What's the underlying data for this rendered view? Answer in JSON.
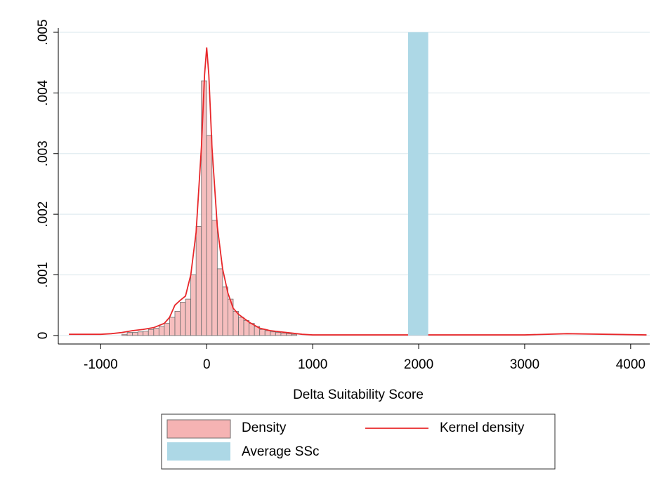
{
  "chart_data": {
    "type": "histogram",
    "x_label": "Delta Suitability Score",
    "xlim": [
      -1400,
      4180
    ],
    "xticks": [
      -1000,
      0,
      1000,
      2000,
      3000,
      4000
    ],
    "ylim": [
      -0.00014,
      0.005
    ],
    "yticks": [
      0,
      {
        "value": 0.001,
        "label": ".001"
      },
      {
        "value": 0.002,
        "label": ".002"
      },
      {
        "value": 0.003,
        "label": ".003"
      },
      {
        "value": 0.004,
        "label": ".004"
      },
      {
        "value": 0.005,
        "label": ".005"
      }
    ],
    "grid": true,
    "bins": [
      -800,
      -750,
      -700,
      -650,
      -600,
      -550,
      -500,
      -450,
      -400,
      -350,
      -300,
      -250,
      -200,
      -150,
      -100,
      -50,
      0,
      50,
      100,
      150,
      200,
      250,
      300,
      350,
      400,
      450,
      500,
      550,
      600,
      650,
      700,
      750,
      800,
      850
    ],
    "series": [
      {
        "name": "Density",
        "type": "histogram",
        "color": "#f5b3b3",
        "values": [
          2e-05,
          5e-05,
          5e-05,
          6e-05,
          7e-05,
          0.0001,
          0.00012,
          0.00015,
          0.0002,
          0.0003,
          0.0004,
          0.00055,
          0.0006,
          0.001,
          0.0018,
          0.0042,
          0.0033,
          0.0019,
          0.0011,
          0.0008,
          0.0006,
          0.0004,
          0.0003,
          0.00025,
          0.0002,
          0.00015,
          0.0001,
          8e-05,
          6e-05,
          5e-05,
          4e-05,
          3e-05,
          2e-05
        ]
      },
      {
        "name": "Kernel density",
        "type": "line",
        "color": "#e8272a",
        "x": [
          -1300,
          -1000,
          -900,
          -800,
          -700,
          -600,
          -500,
          -400,
          -350,
          -300,
          -250,
          -200,
          -150,
          -100,
          -50,
          -20,
          0,
          20,
          50,
          100,
          150,
          200,
          250,
          300,
          400,
          500,
          600,
          700,
          800,
          900,
          1000,
          2000,
          3000,
          3400,
          4150
        ],
        "values": [
          2e-05,
          2e-05,
          3e-05,
          5e-05,
          8e-05,
          0.0001,
          0.00013,
          0.0002,
          0.0003,
          0.0005,
          0.00058,
          0.00065,
          0.001,
          0.0017,
          0.0031,
          0.0043,
          0.00475,
          0.0043,
          0.0031,
          0.0018,
          0.0011,
          0.0007,
          0.00045,
          0.00035,
          0.00022,
          0.00012,
          8e-05,
          6e-05,
          4e-05,
          2e-05,
          1e-05,
          1e-05,
          1e-05,
          3e-05,
          1e-05
        ]
      },
      {
        "name": "Average SSc",
        "type": "band",
        "color": "#add8e6",
        "x": [
          1900,
          2090
        ]
      }
    ]
  }
}
